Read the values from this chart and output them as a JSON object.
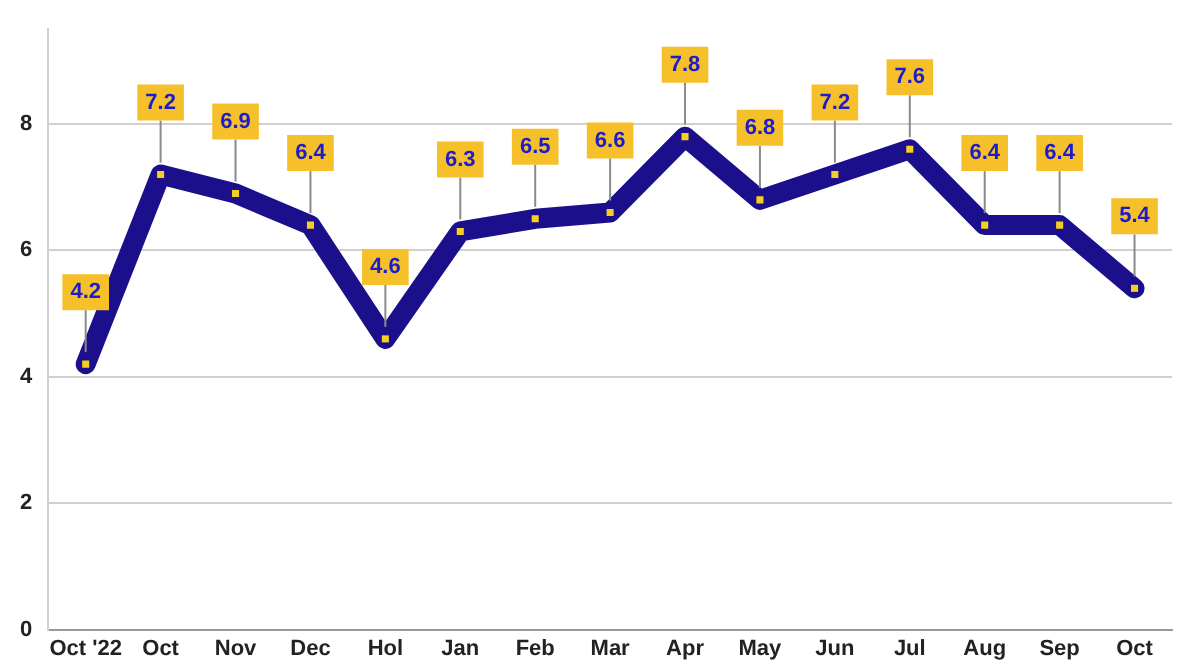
{
  "chart_data": {
    "type": "line",
    "categories": [
      "Oct '22",
      "Oct",
      "Nov",
      "Dec",
      "Hol",
      "Jan",
      "Feb",
      "Mar",
      "Apr",
      "May",
      "Jun",
      "Jul",
      "Aug",
      "Sep",
      "Oct"
    ],
    "series": [
      {
        "color": "#1c0f8c",
        "values": [
          4.2,
          7.2,
          6.9,
          6.4,
          4.6,
          6.3,
          6.5,
          6.6,
          7.8,
          6.8,
          7.2,
          7.6,
          6.4,
          6.4,
          5.4
        ]
      }
    ],
    "ylim": [
      0,
      9.5
    ],
    "yticks": [
      0,
      2,
      4,
      6,
      8
    ],
    "grid": "y",
    "legend": false,
    "marker": "square",
    "line_style": "solid",
    "data_labels": true
  }
}
